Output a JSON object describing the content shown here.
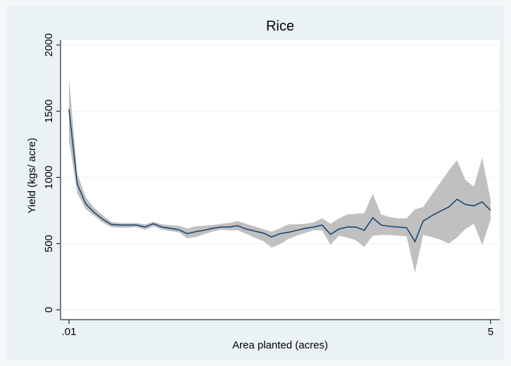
{
  "chart_data": {
    "type": "line",
    "title": "Rice",
    "xlabel": "Area planted (acres)",
    "ylabel": "Yield (kgs/ acre)",
    "xscale": "log",
    "xlim": [
      0.01,
      5
    ],
    "xticks": [
      {
        "value": 0.01,
        "label": ".01"
      },
      5
    ],
    "ylim": [
      0,
      2000
    ],
    "yticks": [
      0,
      500,
      1000,
      1500,
      2000
    ],
    "grid": true,
    "color": "#1a476f",
    "band_color": "#c0c0c0",
    "x": [
      0.01,
      0.0113,
      0.0128,
      0.0145,
      0.0164,
      0.0186,
      0.0211,
      0.0239,
      0.027,
      0.0306,
      0.0347,
      0.0393,
      0.0445,
      0.0504,
      0.057,
      0.0646,
      0.0731,
      0.0828,
      0.0938,
      0.106,
      0.12,
      0.136,
      0.154,
      0.175,
      0.198,
      0.224,
      0.254,
      0.287,
      0.325,
      0.368,
      0.417,
      0.472,
      0.535,
      0.606,
      0.686,
      0.777,
      0.88,
      0.996,
      1.13,
      1.28,
      1.45,
      1.64,
      1.85,
      2.1,
      2.38,
      2.69,
      3.05,
      3.45,
      3.91,
      4.42,
      5
    ],
    "values": [
      1515,
      950,
      800,
      735,
      685,
      645,
      640,
      640,
      640,
      625,
      650,
      625,
      615,
      605,
      575,
      590,
      600,
      615,
      625,
      625,
      635,
      610,
      595,
      580,
      550,
      575,
      585,
      600,
      615,
      625,
      640,
      570,
      610,
      625,
      625,
      600,
      695,
      640,
      630,
      625,
      620,
      515,
      670,
      710,
      745,
      775,
      835,
      795,
      785,
      815,
      750
    ],
    "upper": [
      1750,
      1030,
      850,
      770,
      715,
      665,
      655,
      655,
      655,
      645,
      665,
      645,
      640,
      635,
      615,
      630,
      635,
      640,
      650,
      655,
      670,
      650,
      630,
      610,
      590,
      615,
      645,
      645,
      650,
      660,
      690,
      650,
      690,
      720,
      725,
      730,
      875,
      720,
      700,
      690,
      690,
      760,
      775,
      870,
      960,
      1050,
      1130,
      980,
      930,
      1150,
      830
    ],
    "lower": [
      1280,
      880,
      760,
      710,
      660,
      625,
      620,
      620,
      625,
      605,
      630,
      605,
      595,
      585,
      540,
      550,
      570,
      590,
      605,
      600,
      600,
      575,
      545,
      520,
      470,
      495,
      535,
      560,
      580,
      600,
      600,
      490,
      560,
      545,
      525,
      475,
      560,
      565,
      565,
      560,
      555,
      280,
      565,
      550,
      530,
      500,
      545,
      610,
      650,
      490,
      680
    ]
  }
}
